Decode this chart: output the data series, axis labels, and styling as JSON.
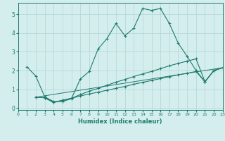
{
  "xlabel": "Humidex (Indice chaleur)",
  "xlim": [
    0,
    23
  ],
  "ylim": [
    -0.1,
    5.6
  ],
  "xticks": [
    0,
    1,
    2,
    3,
    4,
    5,
    6,
    7,
    8,
    9,
    10,
    11,
    12,
    13,
    14,
    15,
    16,
    17,
    18,
    19,
    20,
    21,
    22,
    23
  ],
  "yticks": [
    0,
    1,
    2,
    3,
    4,
    5
  ],
  "background_color": "#d4eeee",
  "grid_color": "#b8d8d8",
  "line_color": "#1e7b6e",
  "lines": [
    {
      "x": [
        1,
        2,
        3,
        4,
        5,
        6,
        7,
        8,
        9,
        10,
        11,
        12,
        13,
        14,
        15,
        16,
        17,
        18,
        19,
        20,
        21,
        22,
        23
      ],
      "y": [
        2.2,
        1.7,
        0.6,
        0.35,
        0.35,
        0.5,
        1.55,
        1.95,
        3.15,
        3.7,
        4.5,
        3.85,
        4.25,
        5.3,
        5.2,
        5.3,
        4.5,
        3.45,
        2.75,
        2.0,
        1.4,
        2.0,
        2.15
      ],
      "markers": true
    },
    {
      "x": [
        2,
        3,
        4,
        5,
        6,
        7,
        8,
        9,
        10,
        11,
        12,
        13,
        14,
        15,
        16,
        17,
        18,
        19,
        20,
        21,
        22,
        23
      ],
      "y": [
        0.58,
        0.55,
        0.3,
        0.42,
        0.52,
        0.72,
        0.9,
        1.05,
        1.22,
        1.38,
        1.52,
        1.68,
        1.82,
        1.95,
        2.1,
        2.25,
        2.38,
        2.5,
        2.62,
        1.4,
        2.0,
        2.15
      ],
      "markers": true
    },
    {
      "x": [
        2,
        3,
        4,
        5,
        6,
        7,
        8,
        9,
        10,
        11,
        12,
        13,
        14,
        15,
        16,
        17,
        18,
        19,
        20,
        21,
        22,
        23
      ],
      "y": [
        0.58,
        0.55,
        0.3,
        0.42,
        0.52,
        0.65,
        0.75,
        0.85,
        0.95,
        1.05,
        1.15,
        1.27,
        1.37,
        1.47,
        1.57,
        1.67,
        1.77,
        1.85,
        1.95,
        1.4,
        2.0,
        2.15
      ],
      "markers": true
    },
    {
      "x": [
        2,
        23
      ],
      "y": [
        0.58,
        2.15
      ],
      "markers": false
    }
  ]
}
